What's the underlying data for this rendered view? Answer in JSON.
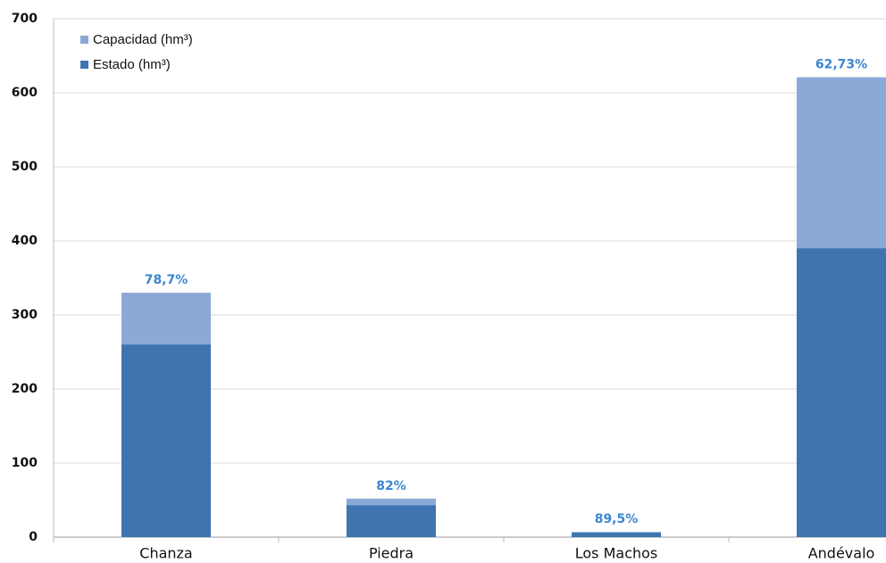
{
  "chart_data": {
    "type": "bar",
    "categories": [
      "Chanza",
      "Piedra",
      "Los Machos",
      "Andévalo"
    ],
    "series": [
      {
        "name": "Capacidad (hm³)",
        "color": "#8aa9d6",
        "values": [
          330,
          52,
          7,
          621
        ]
      },
      {
        "name": "Estado (hm³)",
        "color": "#3f74b0",
        "values": [
          260,
          43,
          6,
          390
        ]
      }
    ],
    "annotations": [
      "78,7%",
      "82%",
      "89,5%",
      "62,73%"
    ],
    "annotation_color": "#3b86d0",
    "ylim": [
      0,
      700
    ],
    "yticks": [
      0,
      100,
      200,
      300,
      400,
      500,
      600,
      700
    ],
    "grid": true,
    "legend": "top-left"
  }
}
